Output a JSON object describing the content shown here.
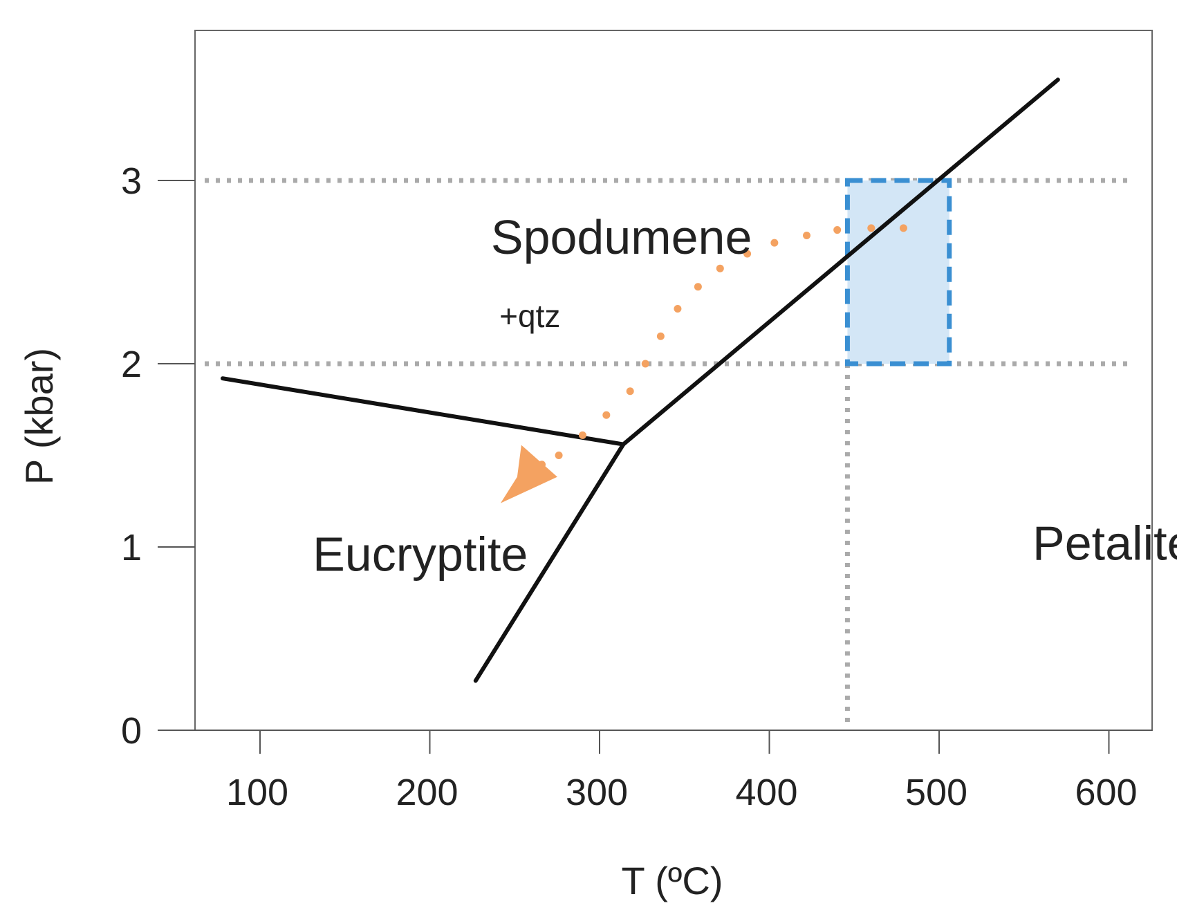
{
  "chart_data": {
    "type": "line",
    "title": "",
    "xlabel": "T (ºC)",
    "ylabel": "P (kbar)",
    "xlim": [
      70,
      640
    ],
    "ylim": [
      0,
      3.7
    ],
    "x_ticks": [
      100,
      200,
      300,
      400,
      500,
      600
    ],
    "y_ticks": [
      0,
      1,
      2,
      3
    ],
    "grid": false,
    "series": [
      {
        "values": [
          [
            78,
            1.92
          ],
          [
            314,
            1.56
          ]
        ]
      },
      {
        "values": [
          [
            314,
            1.56
          ],
          [
            227,
            0.27
          ]
        ]
      },
      {
        "values": [
          [
            314,
            1.56
          ],
          [
            570,
            3.55
          ]
        ]
      }
    ],
    "reference_lines": [
      {
        "axis": "y",
        "value": 3,
        "style": "dotted"
      },
      {
        "axis": "y",
        "value": 2,
        "style": "dotted"
      },
      {
        "axis": "x",
        "value": 446,
        "style": "dotted"
      }
    ],
    "highlight_box": {
      "x": [
        446,
        506
      ],
      "y": [
        2,
        3
      ],
      "fill": "#d3e6f6",
      "stroke": "#3a8fd2"
    },
    "path": {
      "color": "#f4a261",
      "direction": "toward lower temperature and pressure",
      "points": [
        [
          479,
          2.74
        ],
        [
          460,
          2.74
        ],
        [
          440,
          2.73
        ],
        [
          422,
          2.7
        ],
        [
          403,
          2.66
        ],
        [
          387,
          2.6
        ],
        [
          371,
          2.52
        ],
        [
          358,
          2.42
        ],
        [
          346,
          2.3
        ],
        [
          336,
          2.15
        ],
        [
          327,
          2.0
        ],
        [
          318,
          1.85
        ],
        [
          304,
          1.72
        ],
        [
          290,
          1.61
        ],
        [
          276,
          1.5
        ],
        [
          266,
          1.45
        ]
      ],
      "arrowhead_at": [
        258,
        1.36
      ]
    },
    "annotations": [
      {
        "text": "Spodumene",
        "x": 236,
        "y": 2.6
      },
      {
        "text": "+qtz",
        "x": 241,
        "y": 2.2
      },
      {
        "text": "Eucryptite",
        "x": 131,
        "y": 0.87
      },
      {
        "text": "Petalite",
        "x": 555,
        "y": 0.93
      }
    ],
    "colors": {
      "phase_boundary": "#111111",
      "reference_line": "#aaaaaa",
      "path": "#f4a261",
      "box_fill": "#d3e6f6",
      "box_stroke": "#3a8fd2"
    }
  }
}
